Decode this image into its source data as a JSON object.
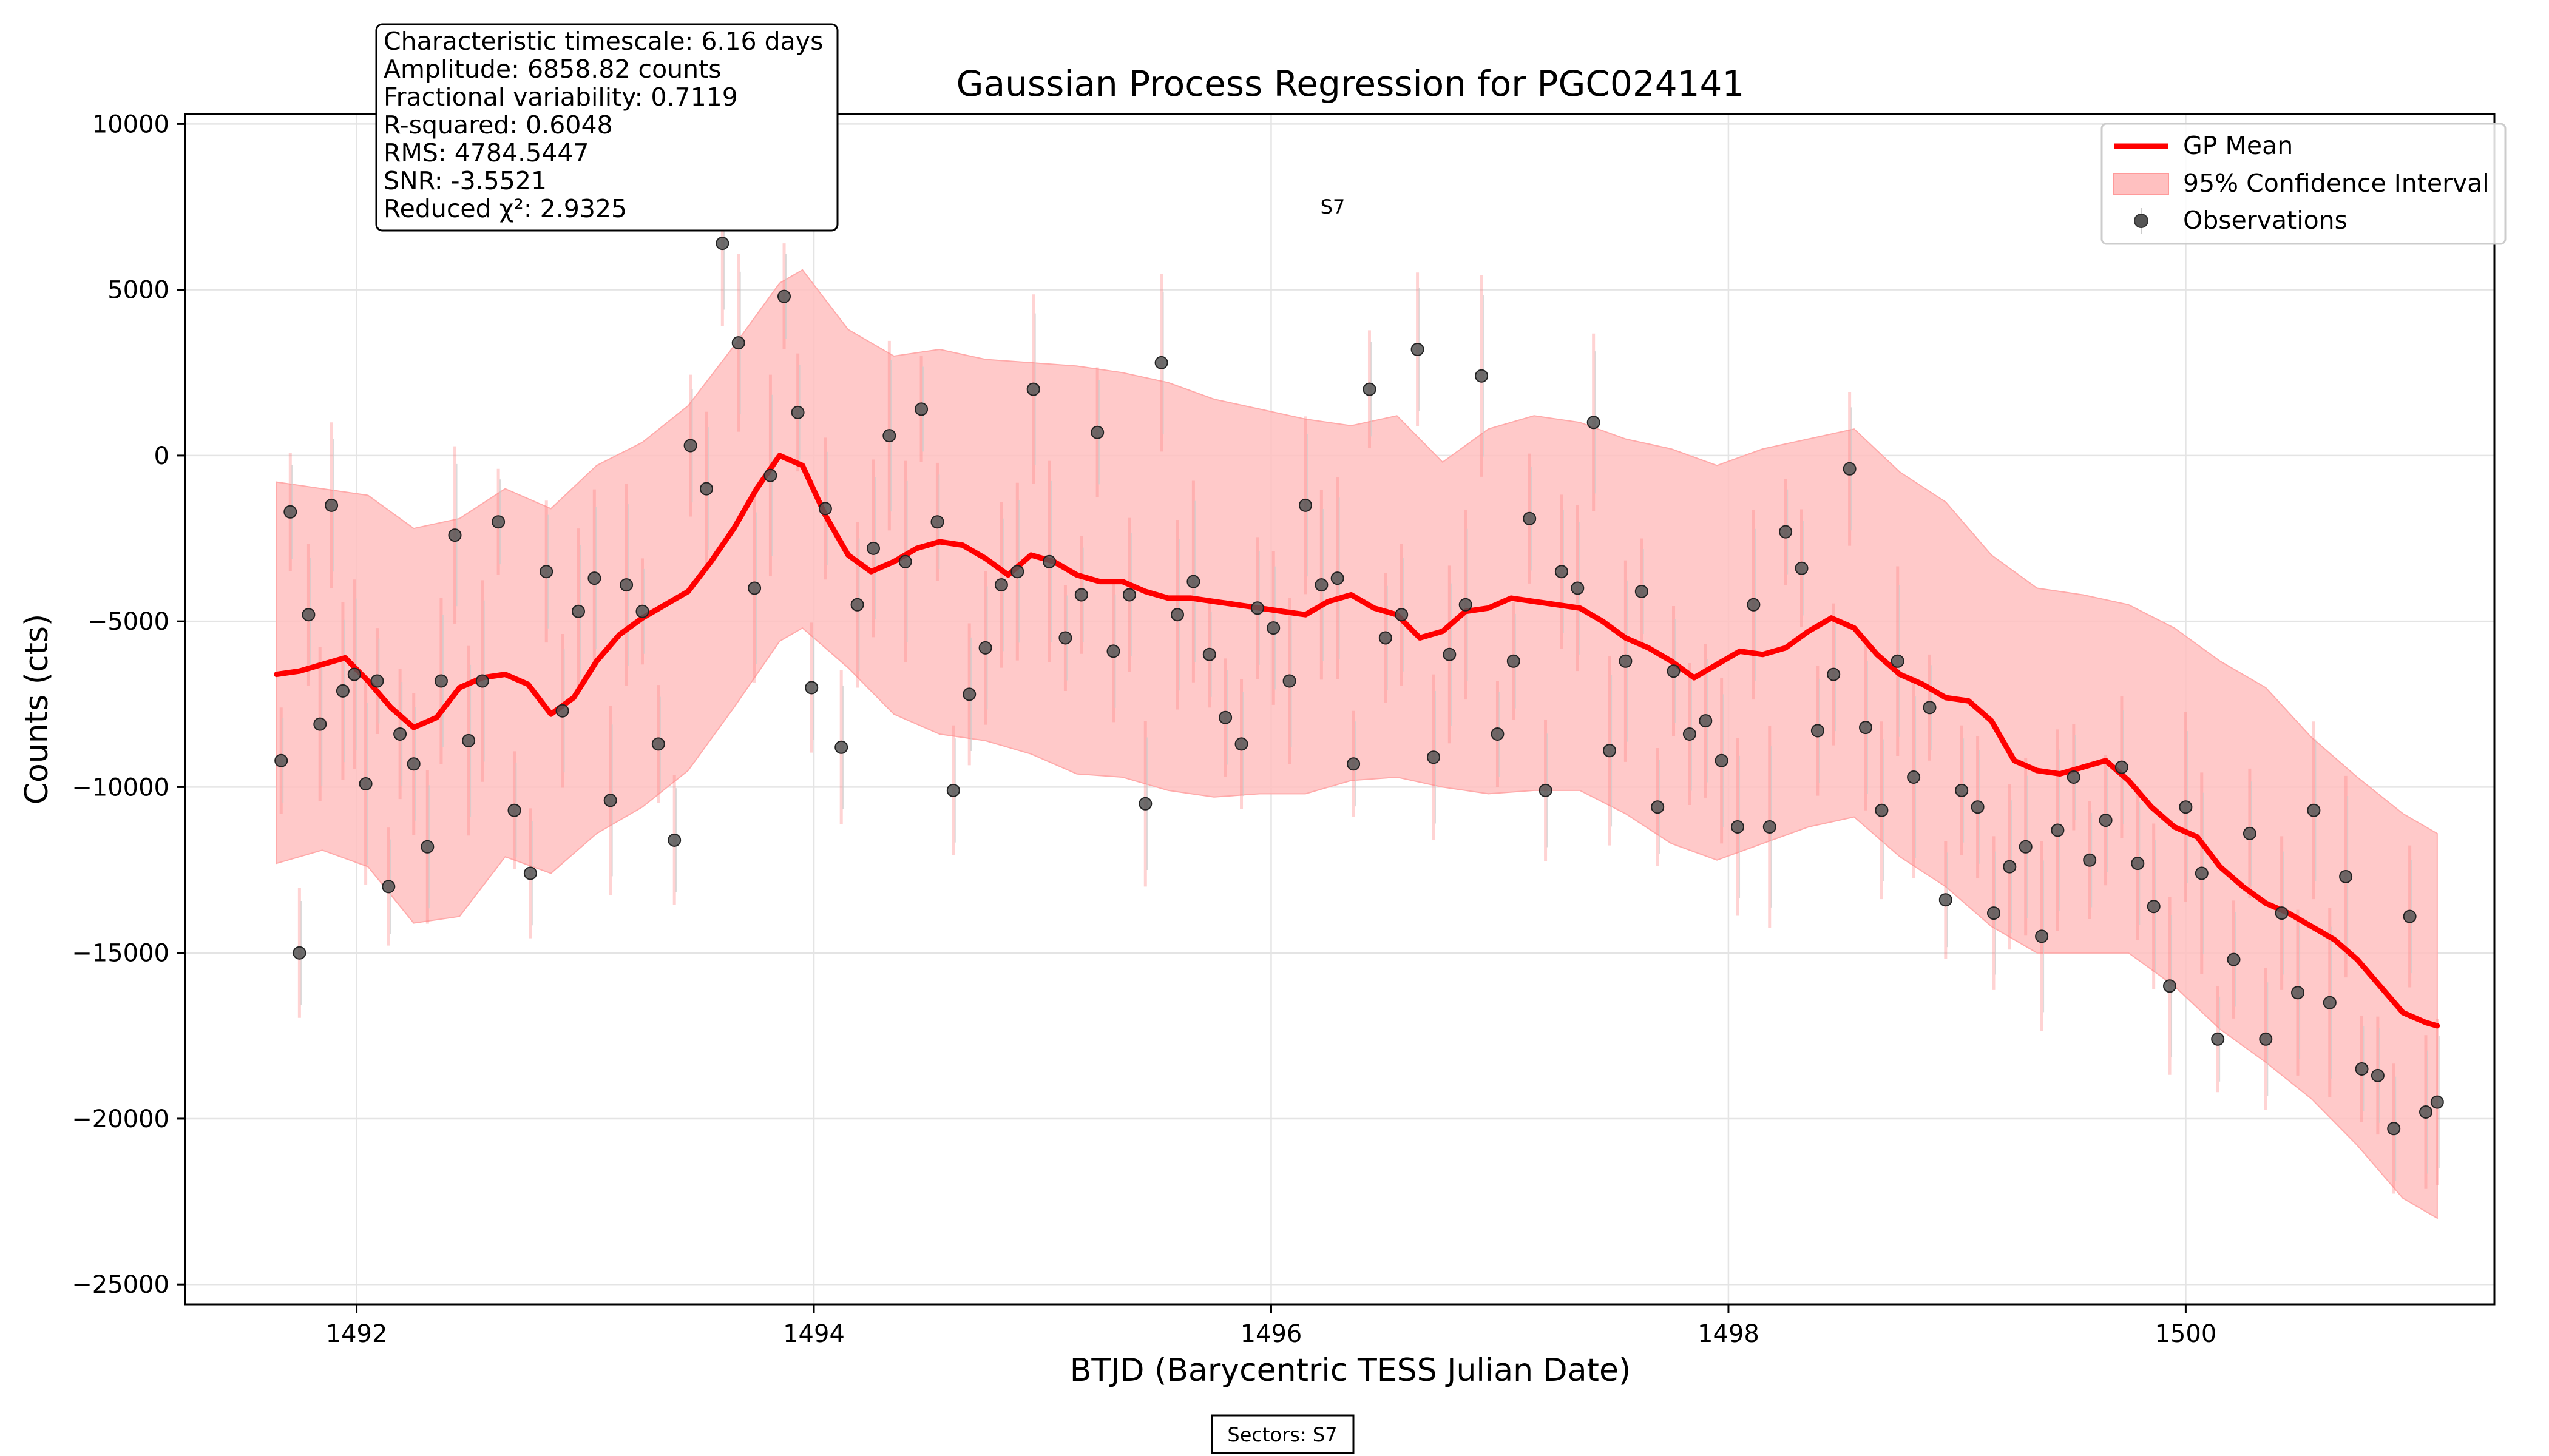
{
  "chart_data": {
    "type": "line",
    "title": "Gaussian Process Regression for PGC024141",
    "xlabel": "BTJD (Barycentric TESS Julian Date)",
    "ylabel": "Counts (cts)",
    "xlim": [
      1491.25,
      1501.35
    ],
    "ylim": [
      -25600,
      10300
    ],
    "xticks": [
      1492,
      1494,
      1496,
      1498,
      1500
    ],
    "yticks": [
      -25000,
      -20000,
      -15000,
      -10000,
      -5000,
      0,
      5000,
      10000
    ],
    "xtick_labels": [
      "1492",
      "1494",
      "1496",
      "1498",
      "1500"
    ],
    "ytick_labels": [
      "−25000",
      "−20000",
      "−15000",
      "−10000",
      "−5000",
      "0",
      "5000",
      "10000"
    ],
    "grid": true,
    "legend_position": "top-right",
    "legend": [
      "GP Mean",
      "95% Confidence Interval",
      "Observations"
    ],
    "series": [
      {
        "name": "GP Mean",
        "color": "#ff0000",
        "x": [
          1491.65,
          1491.75,
          1491.85,
          1491.95,
          1492.05,
          1492.15,
          1492.25,
          1492.35,
          1492.45,
          1492.55,
          1492.65,
          1492.75,
          1492.85,
          1492.95,
          1493.05,
          1493.15,
          1493.25,
          1493.35,
          1493.45,
          1493.55,
          1493.65,
          1493.75,
          1493.85,
          1493.95,
          1494.05,
          1494.15,
          1494.25,
          1494.35,
          1494.45,
          1494.55,
          1494.65,
          1494.75,
          1494.85,
          1494.95,
          1495.05,
          1495.15,
          1495.25,
          1495.35,
          1495.45,
          1495.55,
          1495.65,
          1495.75,
          1495.85,
          1495.95,
          1496.05,
          1496.15,
          1496.25,
          1496.35,
          1496.45,
          1496.55,
          1496.65,
          1496.75,
          1496.85,
          1496.95,
          1497.05,
          1497.15,
          1497.25,
          1497.35,
          1497.45,
          1497.55,
          1497.65,
          1497.75,
          1497.85,
          1497.95,
          1498.05,
          1498.15,
          1498.25,
          1498.35,
          1498.45,
          1498.55,
          1498.65,
          1498.75,
          1498.85,
          1498.95,
          1499.05,
          1499.15,
          1499.25,
          1499.35,
          1499.45,
          1499.55,
          1499.65,
          1499.75,
          1499.85,
          1499.95,
          1500.05,
          1500.15,
          1500.25,
          1500.35,
          1500.45,
          1500.55,
          1500.65,
          1500.75,
          1500.85,
          1500.95,
          1501.05,
          1501.1
        ],
        "y": [
          -6600,
          -6500,
          -6300,
          -6100,
          -6800,
          -7600,
          -8200,
          -7900,
          -7000,
          -6700,
          -6600,
          -6900,
          -7800,
          -7300,
          -6200,
          -5400,
          -4900,
          -4500,
          -4100,
          -3200,
          -2200,
          -1000,
          0,
          -300,
          -1800,
          -3000,
          -3500,
          -3200,
          -2800,
          -2600,
          -2700,
          -3100,
          -3600,
          -3000,
          -3200,
          -3600,
          -3800,
          -3800,
          -4100,
          -4300,
          -4300,
          -4400,
          -4500,
          -4600,
          -4700,
          -4800,
          -4400,
          -4200,
          -4600,
          -4800,
          -5500,
          -5300,
          -4700,
          -4600,
          -4300,
          -4400,
          -4500,
          -4600,
          -5000,
          -5500,
          -5800,
          -6200,
          -6700,
          -6300,
          -5900,
          -6000,
          -5800,
          -5300,
          -4900,
          -5200,
          -6000,
          -6600,
          -6900,
          -7300,
          -7400,
          -8000,
          -9200,
          -9500,
          -9600,
          -9400,
          -9200,
          -9800,
          -10600,
          -11200,
          -11500,
          -12400,
          -13000,
          -13500,
          -13800,
          -14200,
          -14600,
          -15200,
          -16000,
          -16800,
          -17100,
          -17200
        ]
      },
      {
        "name": "95% Confidence Interval",
        "color": "#ffc0c0",
        "x": [
          1491.65,
          1491.85,
          1492.05,
          1492.25,
          1492.45,
          1492.65,
          1492.85,
          1493.05,
          1493.25,
          1493.45,
          1493.65,
          1493.85,
          1493.95,
          1494.15,
          1494.35,
          1494.55,
          1494.75,
          1494.95,
          1495.15,
          1495.35,
          1495.55,
          1495.75,
          1495.95,
          1496.15,
          1496.35,
          1496.55,
          1496.75,
          1496.95,
          1497.15,
          1497.35,
          1497.55,
          1497.75,
          1497.95,
          1498.15,
          1498.35,
          1498.55,
          1498.75,
          1498.95,
          1499.15,
          1499.35,
          1499.55,
          1499.75,
          1499.95,
          1500.15,
          1500.35,
          1500.55,
          1500.75,
          1500.95,
          1501.1
        ],
        "upper": [
          -800,
          -1000,
          -1200,
          -2200,
          -1900,
          -1000,
          -1600,
          -300,
          400,
          1500,
          3300,
          5200,
          5600,
          3800,
          3000,
          3200,
          2900,
          2800,
          2700,
          2500,
          2200,
          1700,
          1400,
          1100,
          900,
          1200,
          -200,
          800,
          1200,
          1000,
          500,
          200,
          -300,
          200,
          500,
          800,
          -500,
          -1400,
          -3000,
          -4000,
          -4200,
          -4500,
          -5200,
          -6200,
          -7000,
          -8500,
          -9700,
          -10800,
          -11400
        ],
        "lower": [
          -12300,
          -11900,
          -12400,
          -14100,
          -13900,
          -12100,
          -12600,
          -11400,
          -10600,
          -9500,
          -7600,
          -5600,
          -5200,
          -6400,
          -7800,
          -8400,
          -8600,
          -9000,
          -9600,
          -9700,
          -10100,
          -10300,
          -10200,
          -10200,
          -9800,
          -9700,
          -10000,
          -10200,
          -10100,
          -10100,
          -10800,
          -11700,
          -12200,
          -11700,
          -11200,
          -10900,
          -12100,
          -13000,
          -14200,
          -15000,
          -15000,
          -15000,
          -16000,
          -17300,
          -18300,
          -19400,
          -20800,
          -22400,
          -23000
        ]
      },
      {
        "name": "Observations",
        "color": "#444444",
        "x": [
          1491.67,
          1491.71,
          1491.75,
          1491.79,
          1491.84,
          1491.89,
          1491.94,
          1491.99,
          1492.04,
          1492.09,
          1492.14,
          1492.19,
          1492.25,
          1492.31,
          1492.37,
          1492.43,
          1492.49,
          1492.55,
          1492.62,
          1492.69,
          1492.76,
          1492.83,
          1492.9,
          1492.97,
          1493.04,
          1493.11,
          1493.18,
          1493.25,
          1493.32,
          1493.39,
          1493.46,
          1493.53,
          1493.6,
          1493.67,
          1493.74,
          1493.81,
          1493.87,
          1493.93,
          1493.99,
          1494.05,
          1494.12,
          1494.19,
          1494.26,
          1494.33,
          1494.4,
          1494.47,
          1494.54,
          1494.61,
          1494.68,
          1494.75,
          1494.82,
          1494.89,
          1494.96,
          1495.03,
          1495.1,
          1495.17,
          1495.24,
          1495.31,
          1495.38,
          1495.45,
          1495.52,
          1495.59,
          1495.66,
          1495.73,
          1495.8,
          1495.87,
          1495.94,
          1496.01,
          1496.08,
          1496.15,
          1496.22,
          1496.29,
          1496.36,
          1496.43,
          1496.5,
          1496.57,
          1496.64,
          1496.71,
          1496.78,
          1496.85,
          1496.92,
          1496.99,
          1497.06,
          1497.13,
          1497.2,
          1497.27,
          1497.34,
          1497.41,
          1497.48,
          1497.55,
          1497.62,
          1497.69,
          1497.76,
          1497.83,
          1497.9,
          1497.97,
          1498.04,
          1498.11,
          1498.18,
          1498.25,
          1498.32,
          1498.39,
          1498.46,
          1498.53,
          1498.6,
          1498.67,
          1498.74,
          1498.81,
          1498.88,
          1498.95,
          1499.02,
          1499.09,
          1499.16,
          1499.23,
          1499.3,
          1499.37,
          1499.44,
          1499.51,
          1499.58,
          1499.65,
          1499.72,
          1499.79,
          1499.86,
          1499.93,
          1500.0,
          1500.07,
          1500.14,
          1500.21,
          1500.28,
          1500.35,
          1500.42,
          1500.49,
          1500.56,
          1500.63,
          1500.7,
          1500.77,
          1500.84,
          1500.91,
          1500.98,
          1501.05,
          1501.1
        ],
        "y": [
          -9200,
          -1700,
          -15000,
          -4800,
          -8100,
          -1500,
          -7100,
          -6600,
          -9900,
          -6800,
          -13000,
          -8400,
          -9300,
          -11800,
          -6800,
          -2400,
          -8600,
          -6800,
          -2000,
          -10700,
          -12600,
          -3500,
          -7700,
          -4700,
          -3700,
          -10400,
          -3900,
          -4700,
          -8700,
          -11600,
          300,
          -1000,
          6400,
          3400,
          -4000,
          -600,
          4800,
          1300,
          -7000,
          -1600,
          -8800,
          -4500,
          -2800,
          600,
          -3200,
          1400,
          -2000,
          -10100,
          -7200,
          -5800,
          -3900,
          -3500,
          2000,
          -3200,
          -5500,
          -4200,
          700,
          -5900,
          -4200,
          -10500,
          2800,
          -4800,
          -3800,
          -6000,
          -7900,
          -8700,
          -4600,
          -5200,
          -6800,
          -1500,
          -3900,
          -3700,
          -9300,
          2000,
          -5500,
          -4800,
          3200,
          -9100,
          -6000,
          -4500,
          2400,
          -8400,
          -6200,
          -1900,
          -10100,
          -3500,
          -4000,
          1000,
          -8900,
          -6200,
          -4100,
          -10600,
          -6500,
          -8400,
          -8000,
          -9200,
          -11200,
          -4500,
          -11200,
          -2300,
          -3400,
          -8300,
          -6600,
          -400,
          -8200,
          -10700,
          -6200,
          -9700,
          -7600,
          -13400,
          -10100,
          -10600,
          -13800,
          -12400,
          -11800,
          -14500,
          -11300,
          -9700,
          -12200,
          -11000,
          -9400,
          -12300,
          -13600,
          -16000,
          -10600,
          -12600,
          -17600,
          -15200,
          -11400,
          -17600,
          -13800,
          -16200,
          -10700,
          -16500,
          -12700,
          -18500,
          -18700,
          -20300,
          -13900,
          -19800,
          -19500
        ]
      }
    ],
    "stats": [
      "Characteristic timescale: 6.16 days",
      "Amplitude: 6858.82 counts",
      "Fractional variability: 0.7119",
      "R-squared: 0.6048",
      "RMS: 4784.5447",
      "SNR: -3.5521",
      "Reduced χ²: 2.9325"
    ],
    "sector_label": "S7",
    "sectors_footer": "Sectors: S7"
  }
}
